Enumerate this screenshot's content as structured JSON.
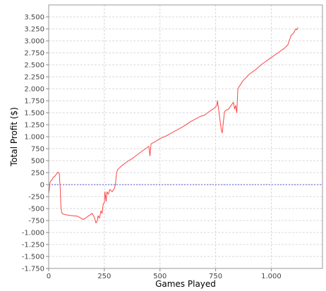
{
  "chart_data": {
    "type": "line",
    "title": "",
    "xlabel": "Games Played",
    "ylabel": "Total Profit ($)",
    "xlim": [
      0,
      1230
    ],
    "ylim": [
      -1750,
      3750
    ],
    "x_ticks": [
      0,
      250,
      500,
      750,
      1000
    ],
    "x_tick_labels": [
      "0",
      "250",
      "500",
      "750",
      "1.000"
    ],
    "y_ticks": [
      3500,
      3250,
      3000,
      2750,
      2500,
      2250,
      2000,
      1750,
      1500,
      1250,
      1000,
      750,
      500,
      250,
      0,
      -250,
      -500,
      -750,
      -1000,
      -1250,
      -1500,
      -1750
    ],
    "y_tick_labels": [
      "3.500",
      "3.250",
      "3.000",
      "2.750",
      "2.500",
      "2.250",
      "2.000",
      "1.750",
      "1.500",
      "1.250",
      "1.000",
      "750",
      "500",
      "250",
      "0",
      "-250",
      "-500",
      "-750",
      "-1.000",
      "-1.250",
      "-1.500",
      "-1.750"
    ],
    "grid": true,
    "zero_line": true,
    "series": [
      {
        "color": "#ff4444",
        "x": [
          0,
          3,
          6,
          10,
          15,
          20,
          28,
          35,
          42,
          48,
          52,
          55,
          58,
          62,
          70,
          90,
          110,
          130,
          145,
          155,
          165,
          180,
          195,
          205,
          212,
          218,
          222,
          228,
          235,
          240,
          245,
          250,
          253,
          258,
          262,
          268,
          275,
          285,
          295,
          300,
          305,
          310,
          318,
          330,
          350,
          380,
          420,
          450,
          455,
          460,
          480,
          500,
          530,
          560,
          600,
          640,
          680,
          700,
          720,
          740,
          755,
          758,
          762,
          768,
          775,
          780,
          785,
          790,
          798,
          805,
          815,
          830,
          835,
          840,
          845,
          850,
          870,
          900,
          930,
          960,
          990,
          1030,
          1060,
          1075,
          1080,
          1090,
          1100,
          1110,
          1115,
          1120
        ],
        "values": [
          -200,
          -100,
          50,
          80,
          100,
          150,
          180,
          220,
          260,
          230,
          -100,
          -450,
          -570,
          -610,
          -620,
          -640,
          -650,
          -660,
          -700,
          -730,
          -700,
          -650,
          -600,
          -680,
          -800,
          -760,
          -650,
          -700,
          -550,
          -600,
          -400,
          -380,
          -150,
          -350,
          -150,
          -200,
          -100,
          -150,
          -80,
          0,
          250,
          310,
          350,
          400,
          470,
          560,
          700,
          800,
          600,
          850,
          900,
          960,
          1020,
          1100,
          1200,
          1320,
          1420,
          1450,
          1520,
          1580,
          1650,
          1750,
          1620,
          1400,
          1150,
          1080,
          1320,
          1520,
          1560,
          1560,
          1620,
          1720,
          1580,
          1650,
          1500,
          2000,
          2150,
          2300,
          2400,
          2520,
          2620,
          2750,
          2850,
          2920,
          3000,
          3120,
          3160,
          3250,
          3230,
          3280
        ]
      }
    ]
  }
}
